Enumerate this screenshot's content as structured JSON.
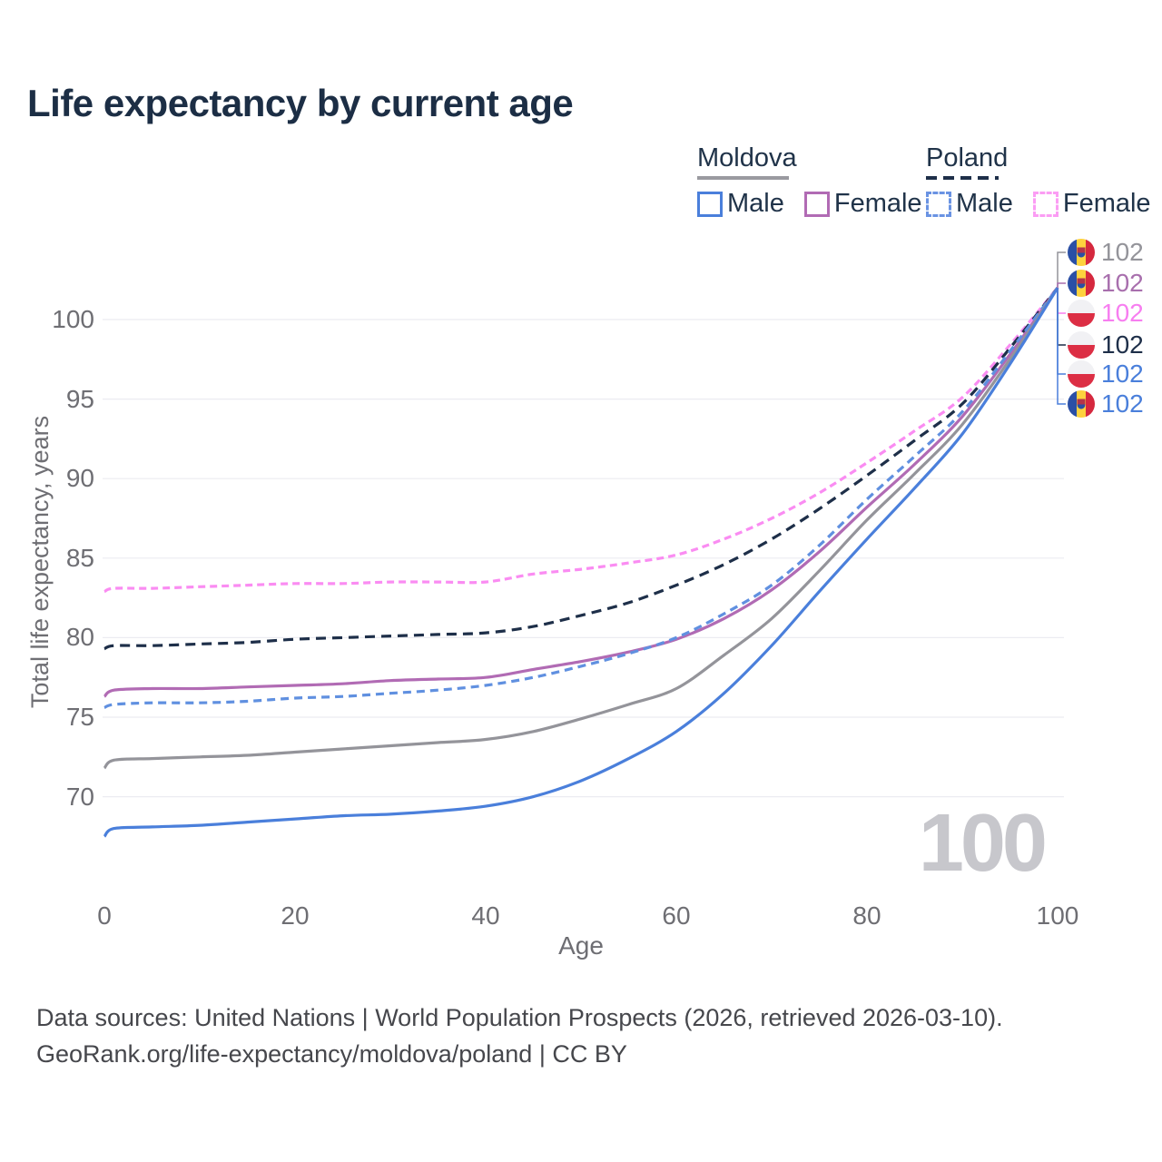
{
  "header": {
    "title": "Life expectancy by current age"
  },
  "legend": {
    "groups": [
      {
        "label": "Moldova",
        "line_style": "solid",
        "underline_color": "#9a9aa0",
        "items": [
          {
            "label": "Male",
            "color": "#4a7fdb",
            "box_style": "solid"
          },
          {
            "label": "Female",
            "color": "#b16bb4",
            "box_style": "solid"
          }
        ]
      },
      {
        "label": "Poland",
        "line_style": "dashed",
        "underline_color": "#1e2f49",
        "items": [
          {
            "label": "Male",
            "color": "#6a93e3",
            "box_style": "dashed"
          },
          {
            "label": "Female",
            "color": "#fb9df4",
            "box_style": "dashed"
          }
        ]
      }
    ]
  },
  "colors": {
    "title": "#1c2e45",
    "axis_text": "#6e6e73",
    "grid": "#ececf1",
    "moldova_male": "#4a7fdb",
    "moldova_female": "#b16bb4",
    "moldova_total": "#94949a",
    "poland_male": "#6090e0",
    "poland_female": "#fa8cf2",
    "poland_total": "#1e2f49",
    "watermark": "#c7c7cc"
  },
  "chart_data": {
    "type": "line",
    "title": "Life expectancy by current age",
    "xlabel": "Age",
    "ylabel": "Total life expectancy, years",
    "x_ticks": [
      0,
      20,
      40,
      60,
      80,
      100
    ],
    "y_ticks": [
      70,
      75,
      80,
      85,
      90,
      95,
      100
    ],
    "xlim": [
      0,
      100
    ],
    "ylim": [
      66.5,
      103
    ],
    "grid": "horizontal",
    "legend_position": "top-right",
    "watermark": "100",
    "ages": [
      0,
      1,
      5,
      10,
      15,
      20,
      25,
      30,
      35,
      40,
      45,
      50,
      55,
      60,
      65,
      70,
      75,
      80,
      85,
      90,
      95,
      100
    ],
    "series": [
      {
        "id": "poland_female",
        "name": "Poland Female",
        "country": "Poland",
        "sex": "Female",
        "style": "dashed",
        "color": "#fa8cf2",
        "values": [
          82.9,
          83.1,
          83.1,
          83.2,
          83.3,
          83.4,
          83.4,
          83.5,
          83.5,
          83.5,
          84.0,
          84.3,
          84.7,
          85.2,
          86.2,
          87.5,
          89.1,
          91.0,
          93.0,
          95.1,
          98.4,
          102
        ]
      },
      {
        "id": "poland_total",
        "name": "Poland Total",
        "country": "Poland",
        "sex": "Both",
        "style": "dashed",
        "color": "#1e2f49",
        "values": [
          79.3,
          79.5,
          79.5,
          79.6,
          79.7,
          79.9,
          80.0,
          80.1,
          80.2,
          80.3,
          80.7,
          81.4,
          82.2,
          83.3,
          84.6,
          86.2,
          88.1,
          90.2,
          92.4,
          94.7,
          98.2,
          102
        ]
      },
      {
        "id": "moldova_female",
        "name": "Moldova Female",
        "country": "Moldova",
        "sex": "Female",
        "style": "solid",
        "color": "#b16bb4",
        "values": [
          76.3,
          76.7,
          76.8,
          76.8,
          76.9,
          77.0,
          77.1,
          77.3,
          77.4,
          77.5,
          78.0,
          78.5,
          79.1,
          79.9,
          81.2,
          83.0,
          85.4,
          88.2,
          90.9,
          93.9,
          97.8,
          102
        ]
      },
      {
        "id": "poland_male",
        "name": "Poland Male",
        "country": "Poland",
        "sex": "Male",
        "style": "dashed",
        "color": "#6090e0",
        "values": [
          75.6,
          75.8,
          75.9,
          75.9,
          76.0,
          76.2,
          76.3,
          76.5,
          76.7,
          77.0,
          77.5,
          78.2,
          79.0,
          80.0,
          81.5,
          83.3,
          85.8,
          88.7,
          91.4,
          94.2,
          98.0,
          102
        ]
      },
      {
        "id": "moldova_total",
        "name": "Moldova Total",
        "country": "Moldova",
        "sex": "Both",
        "style": "solid",
        "color": "#94949a",
        "values": [
          71.8,
          72.3,
          72.4,
          72.5,
          72.6,
          72.8,
          73.0,
          73.2,
          73.4,
          73.6,
          74.1,
          74.9,
          75.8,
          76.8,
          78.9,
          81.2,
          84.2,
          87.4,
          90.3,
          93.4,
          97.5,
          102
        ]
      },
      {
        "id": "moldova_male",
        "name": "Moldova Male",
        "country": "Moldova",
        "sex": "Male",
        "style": "solid",
        "color": "#4a7fdb",
        "values": [
          67.5,
          68.0,
          68.1,
          68.2,
          68.4,
          68.6,
          68.8,
          68.9,
          69.1,
          69.4,
          70.0,
          71.0,
          72.4,
          74.1,
          76.5,
          79.5,
          82.9,
          86.2,
          89.4,
          92.8,
          97.2,
          102
        ]
      }
    ],
    "end_labels": [
      {
        "flag": "moldova",
        "value": "102",
        "color": "#94949a"
      },
      {
        "flag": "moldova",
        "value": "102",
        "color": "#a86fad"
      },
      {
        "flag": "poland",
        "value": "102",
        "color": "#f77ef0"
      },
      {
        "flag": "poland",
        "value": "102",
        "color": "#1e2f49"
      },
      {
        "flag": "poland",
        "value": "102",
        "color": "#4a7fdb"
      },
      {
        "flag": "moldova",
        "value": "102",
        "color": "#4a7fdb"
      }
    ]
  },
  "footer": {
    "line1": "Data sources: United Nations | World Population Prospects (2026, retrieved 2026-03-10).",
    "line2": "GeoRank.org/life-expectancy/moldova/poland | CC BY"
  }
}
